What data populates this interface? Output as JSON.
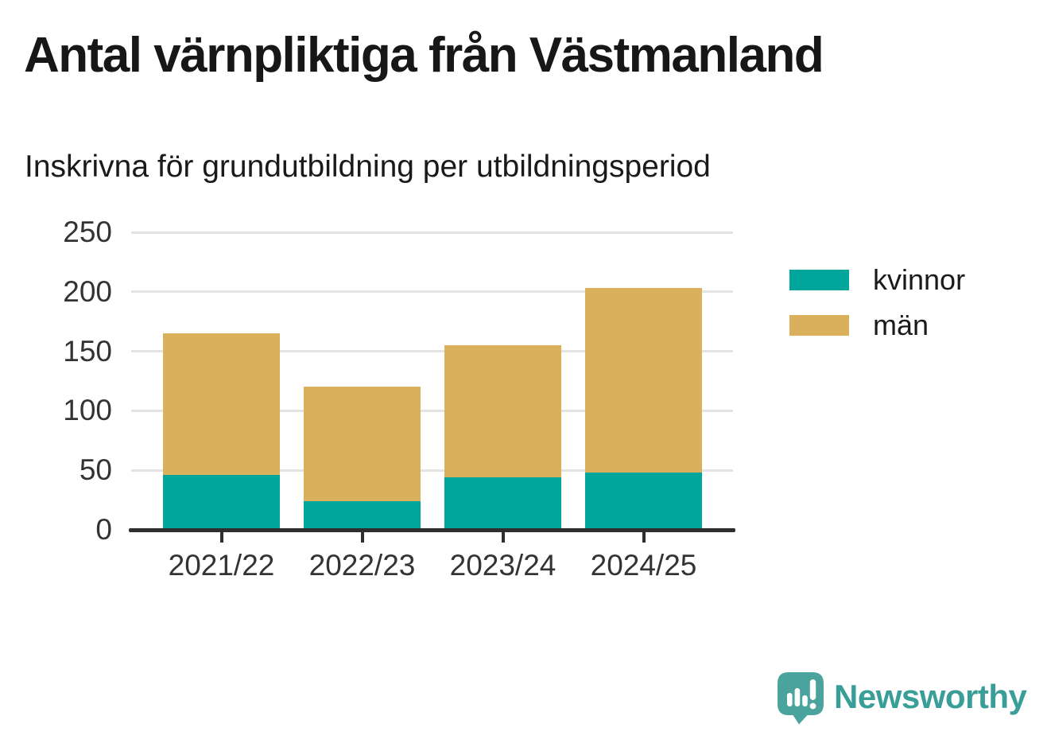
{
  "title": "Antal värnpliktiga från Västmanland",
  "subtitle": "Inskrivna för grundutbildning per utbildningsperiod",
  "chart_data": {
    "type": "bar",
    "stacked": true,
    "title": "Antal värnpliktiga från Västmanland",
    "subtitle": "Inskrivna för grundutbildning per utbildningsperiod",
    "categories": [
      "2021/22",
      "2022/23",
      "2023/24",
      "2024/25"
    ],
    "series": [
      {
        "name": "kvinnor",
        "color": "#00a69b",
        "values": [
          46,
          24,
          44,
          48
        ]
      },
      {
        "name": "män",
        "color": "#dbb05c",
        "values": [
          119,
          96,
          111,
          155
        ]
      }
    ],
    "stack_totals": [
      165,
      120,
      155,
      203
    ],
    "xlabel": "",
    "ylabel": "",
    "ylim": [
      0,
      250
    ],
    "yticks": [
      0,
      50,
      100,
      150,
      200,
      250
    ],
    "grid": "horizontal-light-gray",
    "legend_position": "right"
  },
  "branding": {
    "name": "Newsworthy",
    "logo_icon": "newsworthy-speech-bubble-bar-chart-icon",
    "color": "#399e97"
  },
  "colors": {
    "background": "#ffffff",
    "kvinnor": "#00a69b",
    "man": "#dbb05c",
    "gridline": "#e3e3e3",
    "axis": "#2e2e2e",
    "tick_text": "#333333",
    "title_text": "#171717"
  }
}
